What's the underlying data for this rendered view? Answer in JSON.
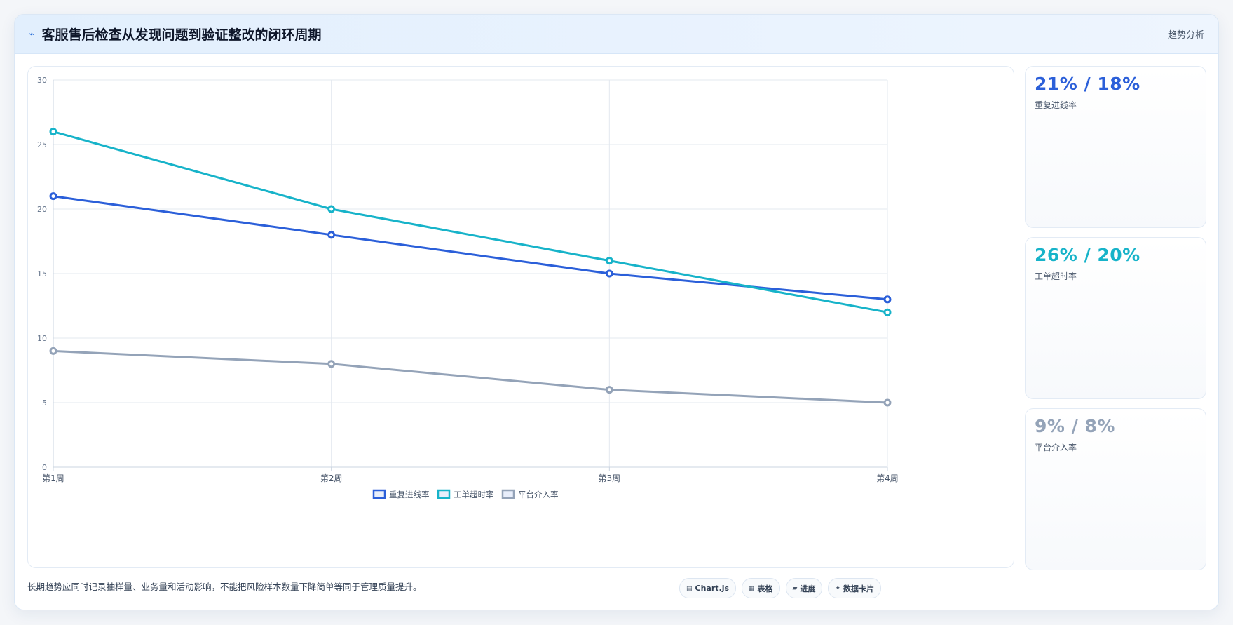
{
  "header": {
    "title": "客服售后检查从发现问题到验证整改的闭环周期",
    "action_label": "趋势分析"
  },
  "chart_data": {
    "type": "line",
    "categories": [
      "第1周",
      "第2周",
      "第3周",
      "第4周"
    ],
    "ylim": [
      0,
      30
    ],
    "yticks": [
      0,
      5,
      10,
      15,
      20,
      25,
      30
    ],
    "grid": true,
    "legend_position": "bottom",
    "series": [
      {
        "name": "重复进线率",
        "values": [
          21,
          18,
          15,
          13
        ],
        "color": "#2b5fd9"
      },
      {
        "name": "工单超时率",
        "values": [
          26,
          20,
          16,
          12
        ],
        "color": "#17b3c9"
      },
      {
        "name": "平台介入率",
        "values": [
          9,
          8,
          6,
          5
        ],
        "color": "#94a3b8"
      }
    ]
  },
  "stats": [
    {
      "value": "21% / 18%",
      "label": "重复进线率",
      "color": "#2b5fd9"
    },
    {
      "value": "26% / 20%",
      "label": "工单超时率",
      "color": "#17b3c9"
    },
    {
      "value": "9% / 8%",
      "label": "平台介入率",
      "color": "#94a3b8"
    }
  ],
  "footer": {
    "note": "长期趋势应同时记录抽样量、业务量和活动影响，不能把风险样本数量下降简单等同于管理质量提升。",
    "tags": [
      {
        "icon": "chart-icon",
        "glyph": "▤",
        "label": "Chart.js"
      },
      {
        "icon": "table-icon",
        "glyph": "▦",
        "label": "表格"
      },
      {
        "icon": "progress-icon",
        "glyph": "▰",
        "label": "进度"
      },
      {
        "icon": "card-icon",
        "glyph": "✦",
        "label": "数据卡片"
      }
    ]
  }
}
